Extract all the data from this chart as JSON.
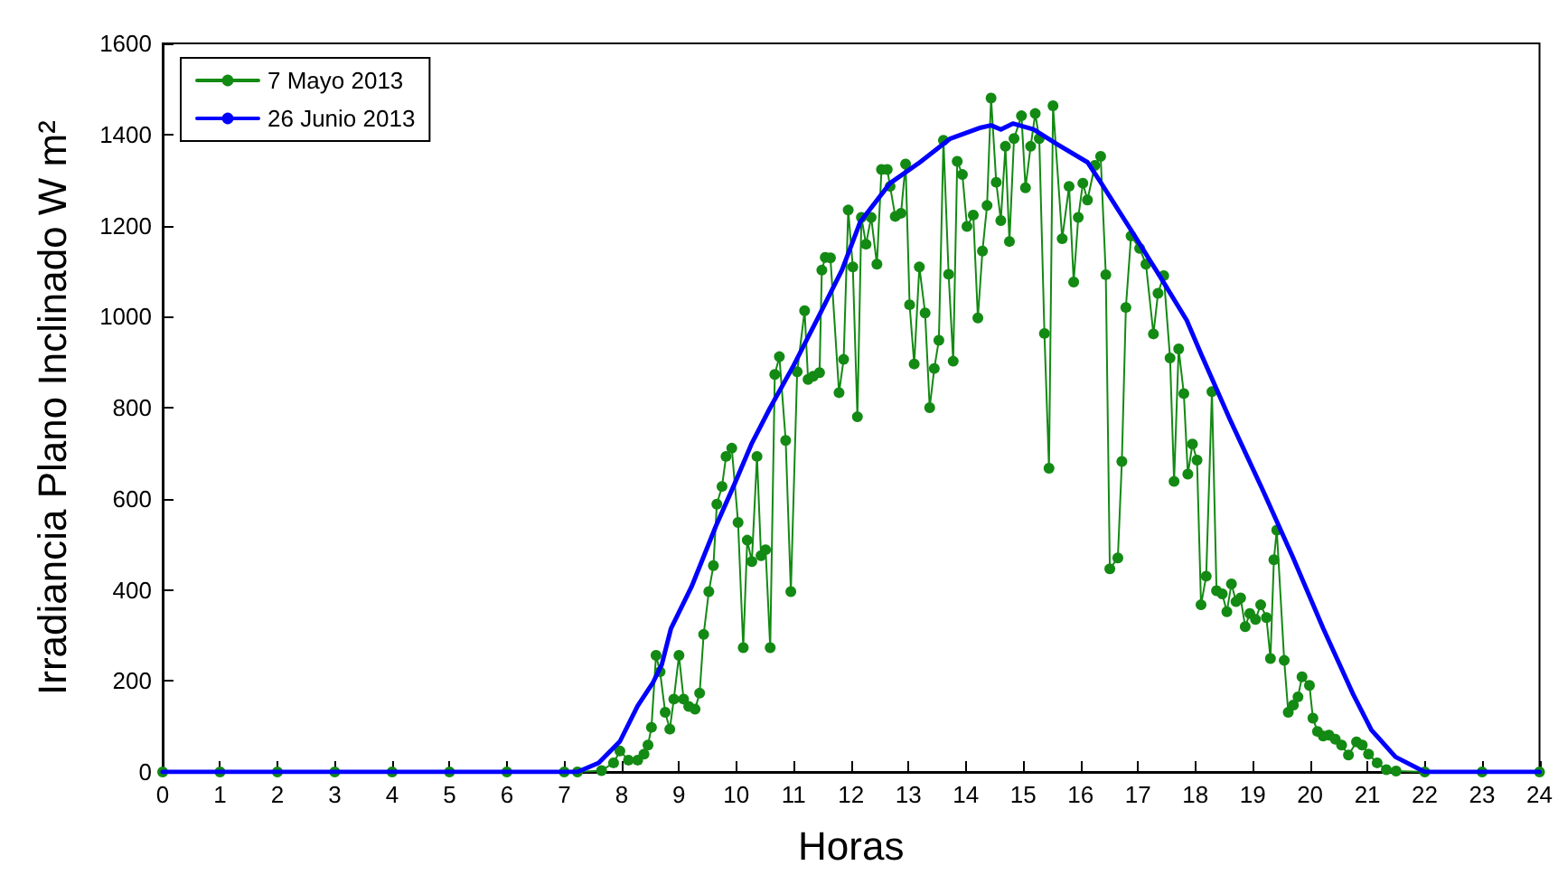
{
  "chart_data": {
    "type": "line",
    "xlabel": "Horas",
    "ylabel": "Irradiancia Plano Inclinado W m²",
    "xlim": [
      0,
      24
    ],
    "xticks": [
      0,
      1,
      2,
      3,
      4,
      5,
      6,
      7,
      8,
      9,
      10,
      11,
      12,
      13,
      14,
      15,
      16,
      17,
      18,
      19,
      20,
      21,
      22,
      23,
      24
    ],
    "ylim": [
      0,
      1600
    ],
    "yticks": [
      0,
      200,
      400,
      600,
      800,
      1000,
      1200,
      1400,
      1600
    ],
    "grid": false,
    "legend": "top left",
    "line_style": "solid",
    "series": [
      {
        "name": "7 Mayo 2013",
        "color": "#138a13",
        "marker": "circle",
        "x": [
          0,
          1,
          2,
          3,
          4,
          5,
          6,
          7,
          7.23,
          7.65,
          7.86,
          7.97,
          8.12,
          8.28,
          8.39,
          8.46,
          8.52,
          8.6,
          8.67,
          8.76,
          8.84,
          8.91,
          9.0,
          9.08,
          9.17,
          9.28,
          9.36,
          9.43,
          9.52,
          9.6,
          9.66,
          9.75,
          9.82,
          9.92,
          10.03,
          10.12,
          10.19,
          10.27,
          10.36,
          10.43,
          10.51,
          10.59,
          10.67,
          10.75,
          10.86,
          10.95,
          11.06,
          11.19,
          11.25,
          11.34,
          11.45,
          11.49,
          11.55,
          11.64,
          11.79,
          11.87,
          11.95,
          12.03,
          12.11,
          12.18,
          12.26,
          12.35,
          12.45,
          12.53,
          12.63,
          12.68,
          12.77,
          12.87,
          12.95,
          13.02,
          13.1,
          13.19,
          13.29,
          13.37,
          13.45,
          13.53,
          13.61,
          13.7,
          13.78,
          13.85,
          13.94,
          14.02,
          14.13,
          14.21,
          14.29,
          14.37,
          14.44,
          14.53,
          14.61,
          14.69,
          14.76,
          14.84,
          14.97,
          15.04,
          15.13,
          15.21,
          15.28,
          15.37,
          15.45,
          15.52,
          15.68,
          15.8,
          15.88,
          15.96,
          16.04,
          16.12,
          16.25,
          16.35,
          16.44,
          16.51,
          16.65,
          16.72,
          16.79,
          16.88,
          17.03,
          17.14,
          17.27,
          17.35,
          17.45,
          17.56,
          17.63,
          17.71,
          17.8,
          17.87,
          17.95,
          18.03,
          18.1,
          18.19,
          18.29,
          18.37,
          18.47,
          18.55,
          18.63,
          18.71,
          18.79,
          18.87,
          18.95,
          19.05,
          19.14,
          19.24,
          19.31,
          19.37,
          19.42,
          19.55,
          19.62,
          19.71,
          19.79,
          19.86,
          19.99,
          20.05,
          20.13,
          20.23,
          20.33,
          20.44,
          20.55,
          20.67,
          20.81,
          20.91,
          21.02,
          21.17,
          21.33,
          21.5,
          22,
          23,
          24
        ],
        "values": [
          0,
          0,
          0,
          0,
          0,
          0,
          0,
          0,
          0,
          3,
          20,
          46,
          26,
          26,
          39,
          59,
          98,
          256,
          220,
          131,
          94,
          160,
          256,
          160,
          144,
          138,
          173,
          302,
          396,
          453,
          588,
          627,
          693,
          711,
          548,
          273,
          509,
          462,
          693,
          475,
          488,
          273,
          873,
          912,
          728,
          396,
          879,
          1013,
          862,
          869,
          877,
          1102,
          1130,
          1129,
          833,
          906,
          1234,
          1109,
          780,
          1218,
          1159,
          1218,
          1115,
          1323,
          1323,
          1286,
          1220,
          1227,
          1335,
          1026,
          896,
          1109,
          1008,
          800,
          886,
          948,
          1387,
          1093,
          902,
          1341,
          1312,
          1198,
          1223,
          997,
          1144,
          1244,
          1480,
          1295,
          1211,
          1374,
          1165,
          1391,
          1441,
          1283,
          1374,
          1446,
          1391,
          963,
          667,
          1463,
          1171,
          1286,
          1076,
          1218,
          1293,
          1256,
          1332,
          1352,
          1092,
          446,
          470,
          682,
          1020,
          1177,
          1150,
          1115,
          962,
          1051,
          1090,
          909,
          638,
          929,
          831,
          654,
          720,
          685,
          367,
          430,
          835,
          398,
          391,
          352,
          413,
          374,
          382,
          319,
          348,
          335,
          367,
          339,
          249,
          466,
          531,
          245,
          131,
          147,
          165,
          209,
          190,
          118,
          89,
          79,
          81,
          72,
          59,
          37,
          66,
          59,
          39,
          20,
          5,
          2,
          0,
          0,
          0
        ]
      },
      {
        "name": "26 Junio 2013",
        "color": "#0000ff",
        "marker": "none",
        "x": [
          0,
          7,
          7.23,
          7.6,
          7.97,
          8.28,
          8.55,
          8.7,
          8.86,
          9.22,
          9.64,
          9.96,
          10.27,
          10.59,
          11.0,
          11.42,
          11.84,
          12.16,
          12.68,
          13.2,
          13.73,
          14.26,
          14.44,
          14.61,
          14.82,
          15.18,
          15.6,
          16.12,
          16.33,
          16.86,
          17.38,
          17.85,
          18.1,
          18.6,
          19.18,
          19.7,
          20.23,
          20.75,
          21.07,
          21.49,
          22,
          24
        ],
        "values": [
          0,
          0,
          0,
          20,
          67,
          145,
          197,
          236,
          315,
          407,
          539,
          630,
          722,
          800,
          893,
          997,
          1102,
          1208,
          1293,
          1339,
          1391,
          1415,
          1420,
          1411,
          1424,
          1411,
          1378,
          1339,
          1299,
          1194,
          1089,
          992,
          918,
          775,
          618,
          472,
          315,
          171,
          92,
          33,
          0,
          0
        ]
      }
    ]
  }
}
